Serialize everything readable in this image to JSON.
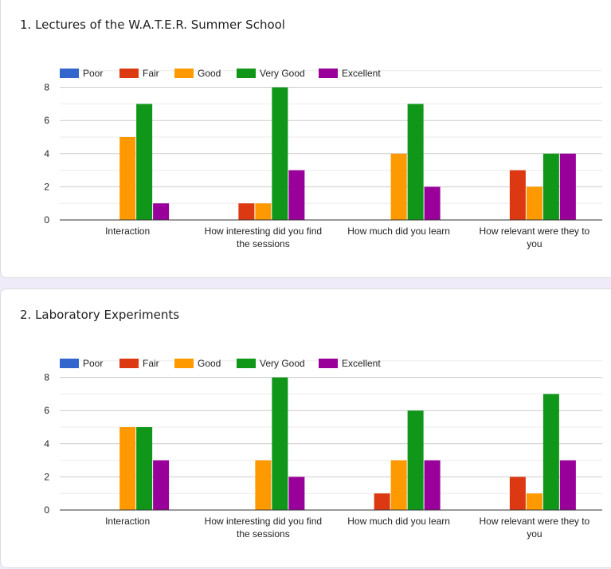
{
  "colors": {
    "Poor": "#3366cc",
    "Fair": "#dc3912",
    "Good": "#ff9900",
    "Very Good": "#109618",
    "Excellent": "#990099",
    "background": "#f0ebf8"
  },
  "cards": [
    {
      "title": "1. Lectures of the W.A.T.E.R. Summer School"
    },
    {
      "title": "2. Laboratory Experiments"
    }
  ],
  "chart_data": [
    {
      "type": "bar",
      "title": "1. Lectures of the W.A.T.E.R. Summer School",
      "categories": [
        [
          "Interaction"
        ],
        [
          "How interesting did you find",
          "the sessions"
        ],
        [
          "How much did you learn"
        ],
        [
          "How relevant were they to",
          "you"
        ]
      ],
      "series": [
        {
          "name": "Poor",
          "values": [
            0,
            0,
            0,
            0
          ]
        },
        {
          "name": "Fair",
          "values": [
            0,
            1,
            0,
            3
          ]
        },
        {
          "name": "Good",
          "values": [
            5,
            1,
            4,
            2
          ]
        },
        {
          "name": "Very Good",
          "values": [
            7,
            8,
            7,
            4
          ]
        },
        {
          "name": "Excellent",
          "values": [
            1,
            3,
            2,
            4
          ]
        }
      ],
      "xlabel": "",
      "ylabel": "",
      "ylim": [
        0,
        9
      ],
      "yticks": [
        0,
        2,
        4,
        6,
        8
      ],
      "grid": true,
      "legend": "top"
    },
    {
      "type": "bar",
      "title": "2. Laboratory Experiments",
      "categories": [
        [
          "Interaction"
        ],
        [
          "How interesting did you find",
          "the sessions"
        ],
        [
          "How much did you learn"
        ],
        [
          "How relevant were they to",
          "you"
        ]
      ],
      "series": [
        {
          "name": "Poor",
          "values": [
            0,
            0,
            0,
            0
          ]
        },
        {
          "name": "Fair",
          "values": [
            0,
            0,
            1,
            2
          ]
        },
        {
          "name": "Good",
          "values": [
            5,
            3,
            3,
            1
          ]
        },
        {
          "name": "Very Good",
          "values": [
            5,
            8,
            6,
            7
          ]
        },
        {
          "name": "Excellent",
          "values": [
            3,
            2,
            3,
            3
          ]
        }
      ],
      "xlabel": "",
      "ylabel": "",
      "ylim": [
        0,
        9
      ],
      "yticks": [
        0,
        2,
        4,
        6,
        8
      ],
      "grid": true,
      "legend": "top"
    }
  ]
}
